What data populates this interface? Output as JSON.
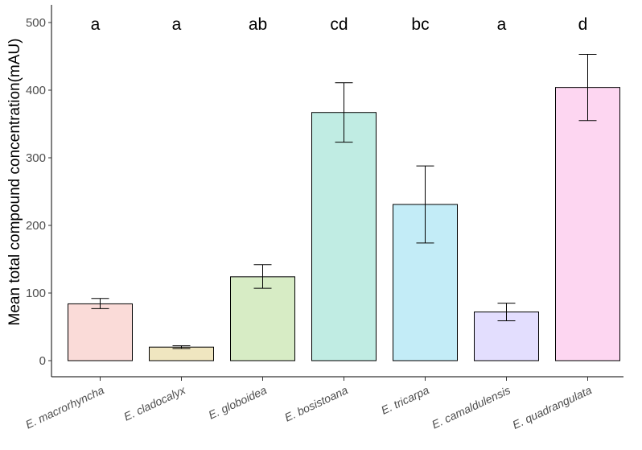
{
  "chart_data": {
    "type": "bar",
    "title": "",
    "xlabel": "",
    "ylabel": "Mean total compound concentration(mAU)",
    "ylim": [
      0,
      525
    ],
    "yticks": [
      0,
      100,
      200,
      300,
      400,
      500
    ],
    "grid": false,
    "categories": [
      "E. macrorhyncha",
      "E. cladocalyx",
      "E. globoidea",
      "E. bosistoana",
      "E. tricarpa",
      "E. camaldulensis",
      "E. quadrangulata"
    ],
    "values": [
      84,
      20,
      124,
      367,
      231,
      72,
      404
    ],
    "error_low": [
      77,
      18,
      107,
      323,
      174,
      59,
      355
    ],
    "error_high": [
      92,
      22,
      142,
      411,
      288,
      85,
      453
    ],
    "letters": [
      "a",
      "a",
      "ab",
      "cd",
      "bc",
      "a",
      "d"
    ],
    "colors": [
      "#fadbd8",
      "#f0e6c0",
      "#d7ecc5",
      "#c0ece3",
      "#c3ecf7",
      "#e3defe",
      "#fdd6f1"
    ]
  }
}
